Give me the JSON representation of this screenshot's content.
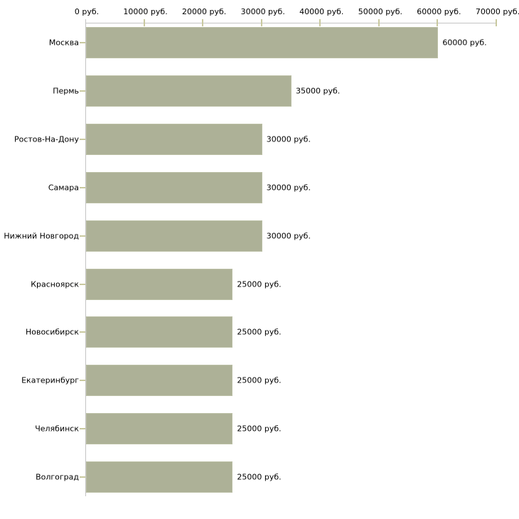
{
  "chart_data": {
    "type": "bar",
    "orientation": "horizontal",
    "title": "",
    "xlabel": "",
    "ylabel": "",
    "unit": "руб.",
    "categories": [
      "Москва",
      "Пермь",
      "Ростов-На-Дону",
      "Самара",
      "Нижний Новгород",
      "Красноярск",
      "Новосибирск",
      "Екатеринбург",
      "Челябинск",
      "Волгоград"
    ],
    "values": [
      60000,
      35000,
      30000,
      30000,
      30000,
      25000,
      25000,
      25000,
      25000,
      25000
    ],
    "bar_labels": [
      "60000 руб.",
      "35000 руб.",
      "30000 руб.",
      "30000 руб.",
      "30000 руб.",
      "25000 руб.",
      "25000 руб.",
      "25000 руб.",
      "25000 руб.",
      "25000 руб."
    ],
    "x_axis": {
      "position": "top",
      "min": 0,
      "max": 70000,
      "ticks": [
        0,
        10000,
        20000,
        30000,
        40000,
        50000,
        60000,
        70000
      ],
      "tick_labels": [
        "0 руб.",
        "10000 руб.",
        "20000 руб.",
        "30000 руб.",
        "40000 руб.",
        "50000 руб.",
        "60000 руб.",
        "70000 руб."
      ]
    },
    "grid": false,
    "legend": false,
    "colors": {
      "bar_fill": "#adb197",
      "bar_border": "#bcc0a6",
      "axis_line": "#c4c4c4",
      "tick_mark": "#c9c99f",
      "text": "#000000",
      "background": "#ffffff"
    }
  }
}
